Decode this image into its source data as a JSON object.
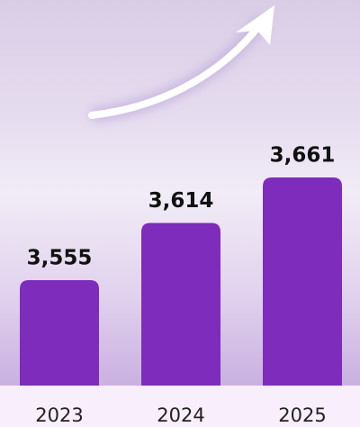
{
  "chart_data": {
    "type": "bar",
    "categories": [
      "2023",
      "2024",
      "2025"
    ],
    "values": [
      3555,
      3614,
      3661
    ],
    "value_labels": [
      "3,555",
      "3,614",
      "3,661"
    ],
    "color": "#7e2cbc"
  }
}
